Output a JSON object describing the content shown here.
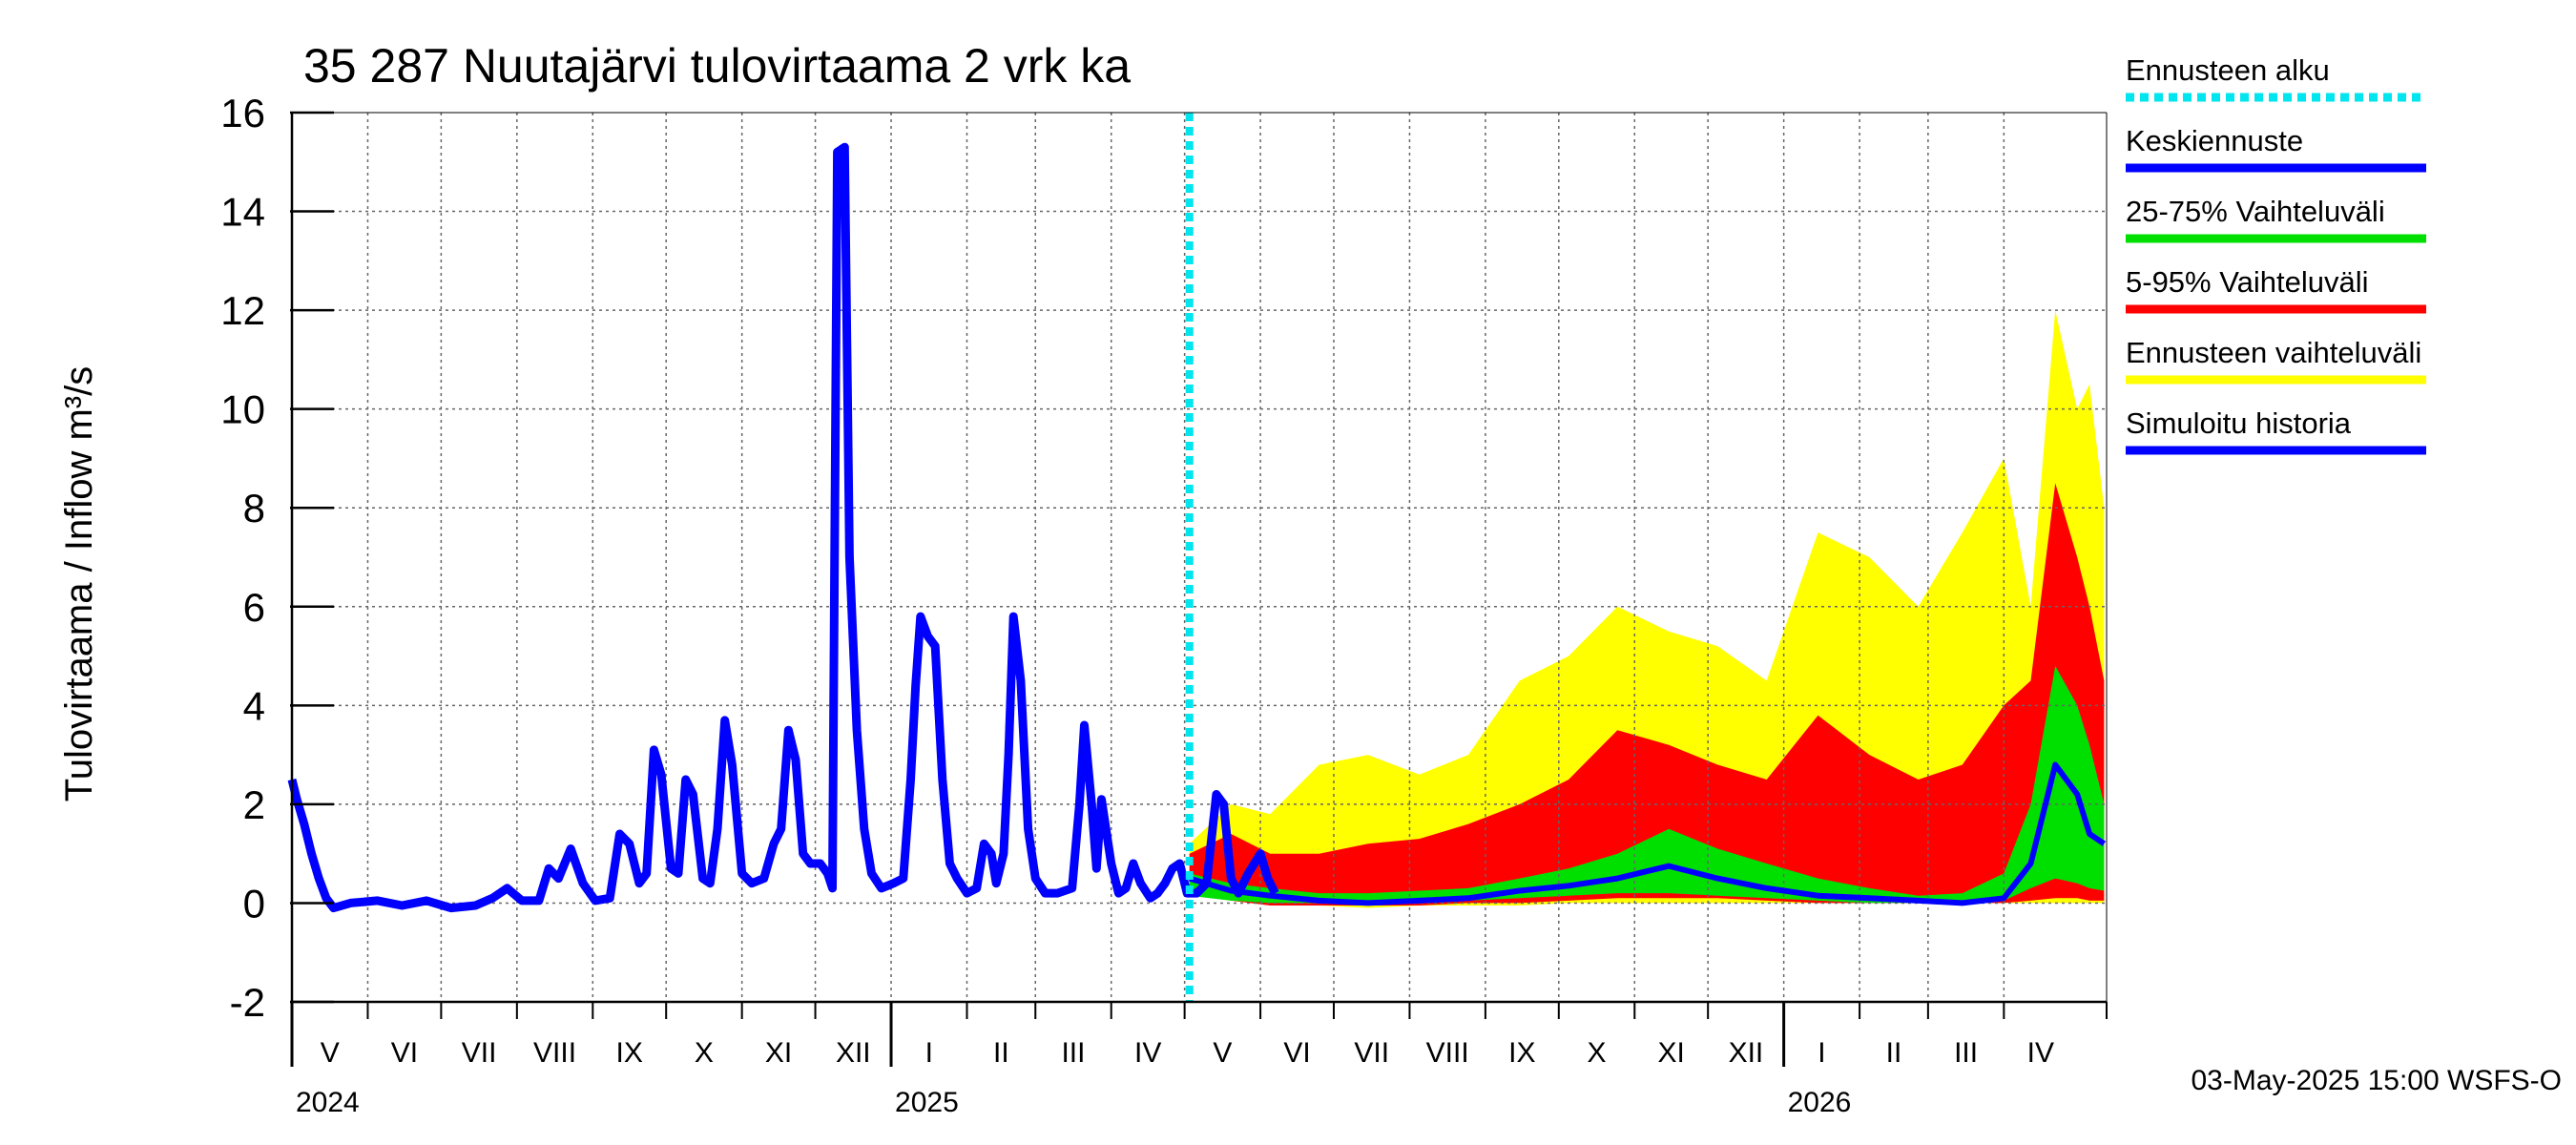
{
  "chart_data": {
    "type": "area",
    "title": "35 287 Nuutajärvi tulovirtaama 2 vrk ka",
    "ylabel": "Tulovirtaama / Inflow    m³/s",
    "ylim": [
      -2,
      16
    ],
    "yticks": [
      -2,
      0,
      2,
      4,
      6,
      8,
      10,
      12,
      14,
      16
    ],
    "ytick_labels": [
      "-2",
      "0",
      "2",
      "4",
      "6",
      "8",
      "10",
      "12",
      "14",
      "16"
    ],
    "xlim": [
      "2024-05-01",
      "2026-05-13"
    ],
    "grid": true,
    "months": [
      {
        "label": "V",
        "start": "2024-05-01",
        "end": "2024-06-01"
      },
      {
        "label": "VI",
        "start": "2024-06-01",
        "end": "2024-07-01"
      },
      {
        "label": "VII",
        "start": "2024-07-01",
        "end": "2024-08-01"
      },
      {
        "label": "VIII",
        "start": "2024-08-01",
        "end": "2024-09-01"
      },
      {
        "label": "IX",
        "start": "2024-09-01",
        "end": "2024-10-01"
      },
      {
        "label": "X",
        "start": "2024-10-01",
        "end": "2024-11-01"
      },
      {
        "label": "XI",
        "start": "2024-11-01",
        "end": "2024-12-01"
      },
      {
        "label": "XII",
        "start": "2024-12-01",
        "end": "2025-01-01"
      },
      {
        "label": "I",
        "start": "2025-01-01",
        "end": "2025-02-01"
      },
      {
        "label": "II",
        "start": "2025-02-01",
        "end": "2025-03-01"
      },
      {
        "label": "III",
        "start": "2025-03-01",
        "end": "2025-04-01"
      },
      {
        "label": "IV",
        "start": "2025-04-01",
        "end": "2025-05-01"
      },
      {
        "label": "V",
        "start": "2025-05-01",
        "end": "2025-06-01"
      },
      {
        "label": "VI",
        "start": "2025-06-01",
        "end": "2025-07-01"
      },
      {
        "label": "VII",
        "start": "2025-07-01",
        "end": "2025-08-01"
      },
      {
        "label": "VIII",
        "start": "2025-08-01",
        "end": "2025-09-01"
      },
      {
        "label": "IX",
        "start": "2025-09-01",
        "end": "2025-10-01"
      },
      {
        "label": "X",
        "start": "2025-10-01",
        "end": "2025-11-01"
      },
      {
        "label": "XI",
        "start": "2025-11-01",
        "end": "2025-12-01"
      },
      {
        "label": "XII",
        "start": "2025-12-01",
        "end": "2026-01-01"
      },
      {
        "label": "I",
        "start": "2026-01-01",
        "end": "2026-02-01"
      },
      {
        "label": "II",
        "start": "2026-02-01",
        "end": "2026-03-01"
      },
      {
        "label": "III",
        "start": "2026-03-01",
        "end": "2026-04-01"
      },
      {
        "label": "IV",
        "start": "2026-04-01",
        "end": "2026-05-01"
      }
    ],
    "years": [
      {
        "label": "2024",
        "at": "2024-05-01"
      },
      {
        "label": "2025",
        "at": "2025-01-01"
      },
      {
        "label": "2026",
        "at": "2026-01-01"
      }
    ],
    "forecast_start": "2025-05-03",
    "legend": {
      "placement": "right",
      "entries": [
        {
          "label": "Ennusteen alku",
          "color": "#00e5ee",
          "style": "dotted"
        },
        {
          "label": "Keskiennuste",
          "color": "#0000ff",
          "style": "solid"
        },
        {
          "label": "25-75% Vaihteluväli",
          "color": "#00e000",
          "style": "solid"
        },
        {
          "label": "5-95% Vaihteluväli",
          "color": "#ff0000",
          "style": "solid"
        },
        {
          "label": "Ennusteen vaihteluväli",
          "color": "#ffff00",
          "style": "solid"
        },
        {
          "label": "Simuloitu historia",
          "color": "#0000ff",
          "style": "solid"
        }
      ]
    },
    "history": {
      "name": "Simuloitu historia",
      "color": "#0000ff",
      "points": [
        [
          "2024-05-01",
          2.5
        ],
        [
          "2024-05-03",
          2.1
        ],
        [
          "2024-05-06",
          1.6
        ],
        [
          "2024-05-09",
          1.0
        ],
        [
          "2024-05-12",
          0.5
        ],
        [
          "2024-05-15",
          0.1
        ],
        [
          "2024-05-18",
          -0.1
        ],
        [
          "2024-05-25",
          0.0
        ],
        [
          "2024-06-05",
          0.05
        ],
        [
          "2024-06-15",
          -0.05
        ],
        [
          "2024-06-25",
          0.05
        ],
        [
          "2024-07-05",
          -0.1
        ],
        [
          "2024-07-15",
          -0.05
        ],
        [
          "2024-07-22",
          0.1
        ],
        [
          "2024-07-28",
          0.3
        ],
        [
          "2024-08-03",
          0.05
        ],
        [
          "2024-08-10",
          0.05
        ],
        [
          "2024-08-14",
          0.7
        ],
        [
          "2024-08-18",
          0.5
        ],
        [
          "2024-08-23",
          1.1
        ],
        [
          "2024-08-28",
          0.4
        ],
        [
          "2024-09-02",
          0.05
        ],
        [
          "2024-09-08",
          0.1
        ],
        [
          "2024-09-12",
          1.4
        ],
        [
          "2024-09-16",
          1.2
        ],
        [
          "2024-09-20",
          0.4
        ],
        [
          "2024-09-23",
          0.6
        ],
        [
          "2024-09-26",
          3.1
        ],
        [
          "2024-09-29",
          2.6
        ],
        [
          "2024-10-03",
          0.7
        ],
        [
          "2024-10-06",
          0.6
        ],
        [
          "2024-10-09",
          2.5
        ],
        [
          "2024-10-12",
          2.2
        ],
        [
          "2024-10-16",
          0.5
        ],
        [
          "2024-10-19",
          0.4
        ],
        [
          "2024-10-22",
          1.5
        ],
        [
          "2024-10-25",
          3.7
        ],
        [
          "2024-10-28",
          2.8
        ],
        [
          "2024-11-01",
          0.6
        ],
        [
          "2024-11-05",
          0.4
        ],
        [
          "2024-11-10",
          0.5
        ],
        [
          "2024-11-14",
          1.2
        ],
        [
          "2024-11-17",
          1.5
        ],
        [
          "2024-11-20",
          3.5
        ],
        [
          "2024-11-23",
          2.9
        ],
        [
          "2024-11-26",
          1.0
        ],
        [
          "2024-11-29",
          0.8
        ],
        [
          "2024-12-03",
          0.8
        ],
        [
          "2024-12-06",
          0.6
        ],
        [
          "2024-12-08",
          0.3
        ],
        [
          "2024-12-09",
          8.0
        ],
        [
          "2024-12-10",
          15.2
        ],
        [
          "2024-12-13",
          15.3
        ],
        [
          "2024-12-15",
          7.0
        ],
        [
          "2024-12-18",
          3.5
        ],
        [
          "2024-12-21",
          1.5
        ],
        [
          "2024-12-24",
          0.6
        ],
        [
          "2024-12-28",
          0.3
        ],
        [
          "2025-01-02",
          0.4
        ],
        [
          "2025-01-06",
          0.5
        ],
        [
          "2025-01-09",
          2.5
        ],
        [
          "2025-01-11",
          4.4
        ],
        [
          "2025-01-13",
          5.8
        ],
        [
          "2025-01-16",
          5.4
        ],
        [
          "2025-01-19",
          5.2
        ],
        [
          "2025-01-22",
          2.5
        ],
        [
          "2025-01-25",
          0.8
        ],
        [
          "2025-01-28",
          0.5
        ],
        [
          "2025-02-01",
          0.2
        ],
        [
          "2025-02-05",
          0.3
        ],
        [
          "2025-02-08",
          1.2
        ],
        [
          "2025-02-11",
          1.0
        ],
        [
          "2025-02-13",
          0.4
        ],
        [
          "2025-02-16",
          1.0
        ],
        [
          "2025-02-18",
          3.0
        ],
        [
          "2025-02-20",
          5.8
        ],
        [
          "2025-02-23",
          4.5
        ],
        [
          "2025-02-26",
          1.5
        ],
        [
          "2025-03-01",
          0.5
        ],
        [
          "2025-03-05",
          0.2
        ],
        [
          "2025-03-10",
          0.2
        ],
        [
          "2025-03-16",
          0.3
        ],
        [
          "2025-03-19",
          2.0
        ],
        [
          "2025-03-21",
          3.6
        ],
        [
          "2025-03-24",
          2.0
        ],
        [
          "2025-03-26",
          0.7
        ],
        [
          "2025-03-28",
          2.1
        ],
        [
          "2025-04-01",
          0.8
        ],
        [
          "2025-04-04",
          0.2
        ],
        [
          "2025-04-07",
          0.3
        ],
        [
          "2025-04-10",
          0.8
        ],
        [
          "2025-04-13",
          0.4
        ],
        [
          "2025-04-17",
          0.1
        ],
        [
          "2025-04-20",
          0.2
        ],
        [
          "2025-04-23",
          0.4
        ],
        [
          "2025-04-26",
          0.7
        ],
        [
          "2025-04-29",
          0.8
        ],
        [
          "2025-05-02",
          0.2
        ],
        [
          "2025-05-06",
          0.2
        ],
        [
          "2025-05-10",
          0.4
        ],
        [
          "2025-05-14",
          2.2
        ],
        [
          "2025-05-17",
          2.0
        ],
        [
          "2025-05-20",
          0.5
        ],
        [
          "2025-05-23",
          0.2
        ],
        [
          "2025-05-27",
          0.6
        ],
        [
          "2025-06-01",
          1.0
        ],
        [
          "2025-06-04",
          0.5
        ],
        [
          "2025-06-07",
          0.2
        ]
      ]
    },
    "forecast": {
      "dates": [
        "2025-05-03",
        "2025-05-20",
        "2025-06-05",
        "2025-06-25",
        "2025-07-15",
        "2025-08-05",
        "2025-08-25",
        "2025-09-15",
        "2025-10-05",
        "2025-10-25",
        "2025-11-15",
        "2025-12-05",
        "2025-12-25",
        "2026-01-15",
        "2026-02-05",
        "2026-02-25",
        "2026-03-15",
        "2026-04-01",
        "2026-04-12",
        "2026-04-22",
        "2026-05-01",
        "2026-05-06",
        "2026-05-12"
      ],
      "yellow_upper": [
        1.2,
        2.0,
        1.8,
        2.8,
        3.0,
        2.6,
        3.0,
        4.5,
        5.0,
        6.0,
        5.5,
        5.2,
        4.5,
        7.5,
        7.0,
        6.0,
        7.5,
        9.0,
        6.0,
        12.0,
        10.0,
        10.5,
        8.0
      ],
      "yellow_lower": [
        0.2,
        0.1,
        0.0,
        -0.05,
        -0.1,
        -0.05,
        -0.05,
        -0.05,
        0.0,
        0.0,
        0.0,
        0.0,
        0.0,
        0.0,
        0.0,
        0.0,
        0.0,
        0.0,
        0.0,
        0.0,
        0.0,
        0.0,
        0.0
      ],
      "red_upper": [
        1.0,
        1.4,
        1.0,
        1.0,
        1.2,
        1.3,
        1.6,
        2.0,
        2.5,
        3.5,
        3.2,
        2.8,
        2.5,
        3.8,
        3.0,
        2.5,
        2.8,
        4.0,
        4.5,
        8.5,
        7.0,
        6.0,
        4.5
      ],
      "red_lower": [
        0.2,
        0.05,
        -0.05,
        -0.05,
        -0.05,
        -0.05,
        0.0,
        0.0,
        0.05,
        0.1,
        0.1,
        0.1,
        0.05,
        0.0,
        0.0,
        0.0,
        0.0,
        0.0,
        0.05,
        0.1,
        0.1,
        0.05,
        0.05
      ],
      "green_upper": [
        0.6,
        0.4,
        0.3,
        0.2,
        0.2,
        0.25,
        0.3,
        0.5,
        0.7,
        1.0,
        1.5,
        1.1,
        0.8,
        0.5,
        0.3,
        0.15,
        0.2,
        0.6,
        2.0,
        4.8,
        4.0,
        3.2,
        2.0
      ],
      "green_lower": [
        0.15,
        0.05,
        0.0,
        0.0,
        0.0,
        0.0,
        0.05,
        0.1,
        0.15,
        0.2,
        0.2,
        0.15,
        0.1,
        0.05,
        0.0,
        0.0,
        0.0,
        0.05,
        0.3,
        0.5,
        0.4,
        0.3,
        0.25
      ],
      "median": [
        0.5,
        0.25,
        0.15,
        0.05,
        0.0,
        0.05,
        0.1,
        0.25,
        0.35,
        0.5,
        0.75,
        0.5,
        0.3,
        0.15,
        0.1,
        0.05,
        0.0,
        0.1,
        0.8,
        2.8,
        2.2,
        1.4,
        1.2
      ]
    },
    "footer": "03-May-2025 15:00 WSFS-O"
  }
}
